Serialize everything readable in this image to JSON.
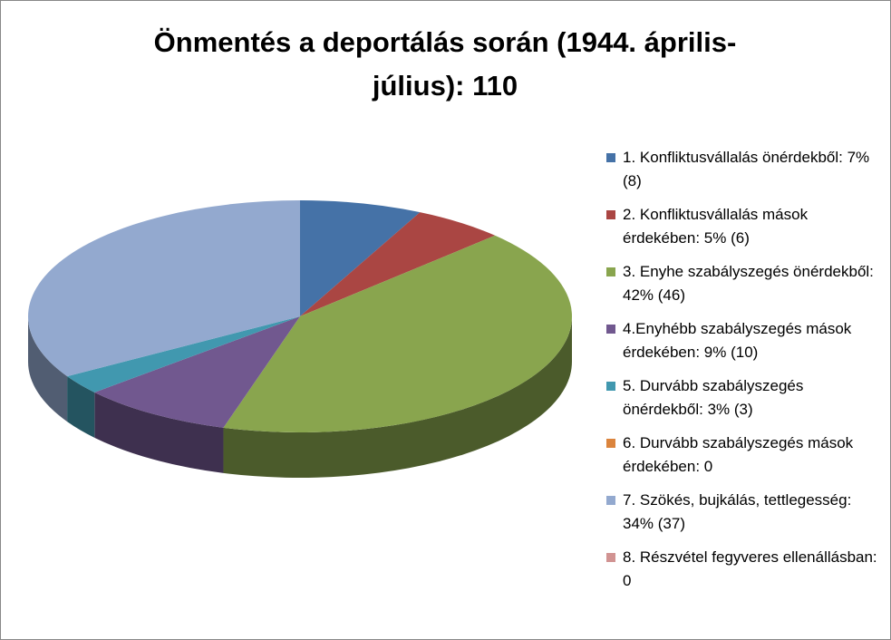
{
  "chart_data": {
    "type": "pie",
    "three_d": true,
    "title": "Önmentés a deportálás során (1944. április-július): 110",
    "categories": [
      "1. Konfliktusvállalás önérdekből: 7% (8)",
      "2. Konfliktusvállalás mások érdekében: 5% (6)",
      "3. Enyhe szabályszegés önérdekből: 42% (46)",
      "4.Enyhébb szabályszegés mások érdekében: 9% (10)",
      "5. Durvább szabályszegés önérdekből: 3% (3)",
      "6. Durvább szabályszegés mások érdekében: 0",
      "7. Szökés, bujkálás, tettlegesség: 34% (37)",
      "8. Részvétel fegyveres ellenállásban: 0"
    ],
    "values": [
      8,
      6,
      46,
      10,
      3,
      0,
      37,
      0
    ],
    "colors": [
      "#4572a7",
      "#aa4643",
      "#89a54e",
      "#71588f",
      "#4198af",
      "#db843d",
      "#93a9cf",
      "#d19392"
    ],
    "legend": "right"
  }
}
